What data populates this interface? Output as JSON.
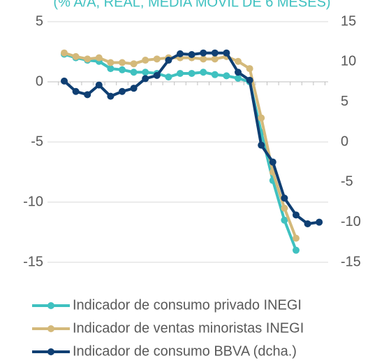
{
  "chart_data": {
    "type": "line",
    "subtitle": "(% A/A, REAL, MEDIA MÓVIL DE 6 MESES)",
    "categories": [
      null,
      null,
      null,
      null,
      null,
      null,
      null,
      null,
      null,
      null,
      null,
      null,
      null,
      null,
      null,
      null,
      null,
      null,
      null,
      null,
      null,
      null,
      null
    ],
    "ylim": [
      -15,
      5
    ],
    "yticks": [
      5,
      0,
      -5,
      -10,
      -15
    ],
    "y2lim": [
      -15,
      15
    ],
    "y2ticks": [
      15,
      10,
      5,
      0,
      -5,
      -10,
      -15
    ],
    "grid": true,
    "legend": "bottom",
    "series": [
      {
        "name": "Indicador de consumo privado INEGI",
        "color": "#3fc1c0",
        "values": [
          2.3,
          2.0,
          1.8,
          1.7,
          1.1,
          1.0,
          0.8,
          0.8,
          0.7,
          0.4,
          0.7,
          0.7,
          0.8,
          0.6,
          0.5,
          0.3,
          0.0,
          -4.2,
          -8.2,
          -11.5,
          -14.0,
          null,
          null
        ]
      },
      {
        "name": "Indicador de ventas minoristas INEGI",
        "color": "#d4b97a",
        "values": [
          2.4,
          2.1,
          1.9,
          2.0,
          1.6,
          1.6,
          1.5,
          1.8,
          1.9,
          2.0,
          2.0,
          2.0,
          1.9,
          1.9,
          2.1,
          1.7,
          1.1,
          -3.0,
          -7.5,
          -10.5,
          -13.0,
          null,
          null
        ]
      },
      {
        "name": "Indicador de consumo BBVA (dcha.)",
        "color": "#0f3f73",
        "axis": "y2",
        "values": [
          7.6,
          6.3,
          5.9,
          7.1,
          5.7,
          6.3,
          6.7,
          7.9,
          8.3,
          10.2,
          11.0,
          10.9,
          11.1,
          11.1,
          11.1,
          8.7,
          7.7,
          -0.4,
          -2.5,
          -7.0,
          -9.1,
          -10.2,
          -10.0
        ]
      }
    ]
  }
}
